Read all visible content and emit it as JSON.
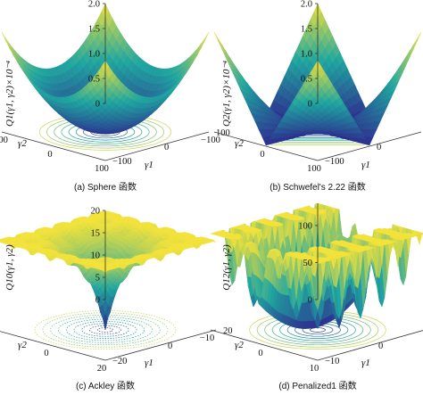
{
  "colors": {
    "low": "#2d2a8e",
    "mid": "#1fa6a0",
    "high": "#f2e23a",
    "axis": "#333333"
  },
  "chart_data": [
    {
      "type": "surface",
      "function": "sphere",
      "caption": "(a)  Sphere 函数",
      "zlabel": "Q1(γ1, γ2)×10⁻⁴",
      "xlabel": "γ1",
      "ylabel": "γ2",
      "zticks": [
        "0",
        "0.5",
        "1.0",
        "1.5",
        "2.0"
      ],
      "xticks": [
        "−100",
        "0",
        "100"
      ],
      "yticks": [
        "−100",
        "0",
        "100"
      ],
      "xlim": [
        -100,
        100
      ],
      "ylim": [
        -100,
        100
      ],
      "zlim": [
        0,
        2.0
      ]
    },
    {
      "type": "surface",
      "function": "schwefel222",
      "caption": "(b)  Schwefel's 2.22 函数",
      "zlabel": "Q2(γ1, γ2)×10⁻⁴",
      "xlabel": "γ1",
      "ylabel": "γ2",
      "zticks": [
        "0",
        "0.5",
        "1.0",
        "1.5",
        "2.0"
      ],
      "xticks": [
        "−100",
        "0",
        "100"
      ],
      "yticks": [
        "−100",
        "0",
        "100"
      ],
      "xlim": [
        -100,
        100
      ],
      "ylim": [
        -100,
        100
      ],
      "zlim": [
        0,
        2.0
      ]
    },
    {
      "type": "surface",
      "function": "ackley",
      "caption": "(c)  Ackley 函数",
      "zlabel": "Q10(γ1, γ2)",
      "xlabel": "γ1",
      "ylabel": "γ2",
      "zticks": [
        "0",
        "5",
        "10",
        "15",
        "20"
      ],
      "xticks": [
        "−20",
        "0",
        "20"
      ],
      "yticks": [
        "−20",
        "0",
        "20"
      ],
      "xlim": [
        -20,
        20
      ],
      "ylim": [
        -20,
        20
      ],
      "zlim": [
        0,
        20
      ]
    },
    {
      "type": "surface",
      "function": "penalized1",
      "caption": "(d)  Penalized1 函数",
      "zlabel": "Q12(γ1, γ2)",
      "xlabel": "γ1",
      "ylabel": "γ2",
      "zticks": [
        "0",
        "50",
        "100"
      ],
      "xticks": [
        "−10",
        "0",
        "10"
      ],
      "yticks": [
        "−10",
        "0",
        "10"
      ],
      "xlim": [
        -10,
        10
      ],
      "ylim": [
        -10,
        10
      ],
      "zlim": [
        0,
        130
      ]
    }
  ]
}
